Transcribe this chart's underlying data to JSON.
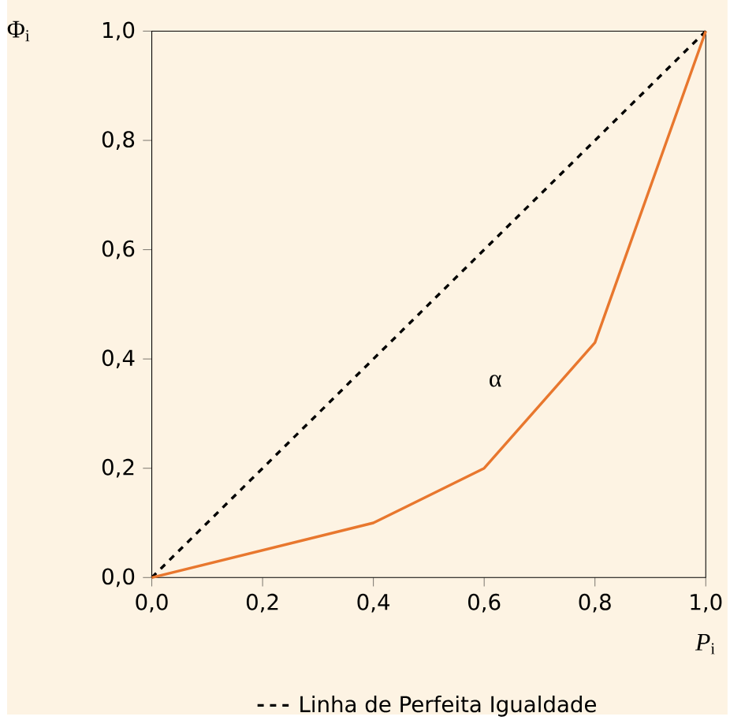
{
  "chart_data": {
    "type": "line",
    "xlabel": "*P*$_{i}$",
    "ylabel": "Φ$_{i}$",
    "xlim": [
      0,
      1
    ],
    "ylim": [
      0,
      1
    ],
    "xticks": [
      {
        "value": 0,
        "label": "0,0"
      },
      {
        "value": 0.2,
        "label": "0,2"
      },
      {
        "value": 0.4,
        "label": "0,4"
      },
      {
        "value": 0.6,
        "label": "0,6"
      },
      {
        "value": 0.8,
        "label": "0,8"
      },
      {
        "value": 1,
        "label": "1,0"
      }
    ],
    "yticks": [
      {
        "value": 0,
        "label": "0,0"
      },
      {
        "value": 0.2,
        "label": "0,2"
      },
      {
        "value": 0.4,
        "label": "0,4"
      },
      {
        "value": 0.6,
        "label": "0,6"
      },
      {
        "value": 0.8,
        "label": "0,8"
      },
      {
        "value": 1,
        "label": "1,0"
      }
    ],
    "series": [
      {
        "name": "Linha de Perfeita Igualdade",
        "color": "#000000",
        "line_style": "dashed",
        "x": [
          0,
          1
        ],
        "values": [
          0,
          1
        ]
      },
      {
        "color": "#e8772e",
        "line_style": "solid",
        "x": [
          0,
          0.4,
          0.6,
          0.8,
          1
        ],
        "values": [
          0,
          0.1,
          0.2,
          0.43,
          1
        ]
      }
    ],
    "annotations": [
      "α"
    ],
    "legend": "bottom",
    "grid": false
  }
}
